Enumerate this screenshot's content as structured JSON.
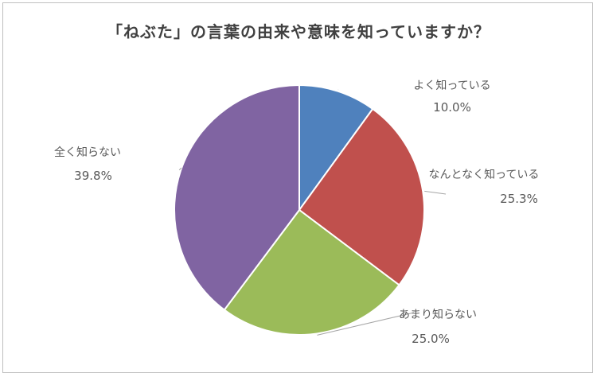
{
  "chart_data": {
    "type": "pie",
    "title": "「ねぶた」の言葉の由来や意味を知っていますか？",
    "slices": [
      {
        "label": "よく知っている",
        "value": 10.0,
        "display": "10.0%",
        "color": "#4f81bd"
      },
      {
        "label": "なんとなく知っている",
        "value": 25.3,
        "display": "25.3%",
        "color": "#c0504d"
      },
      {
        "label": "あまり知らない",
        "value": 25.0,
        "display": "25.0%",
        "color": "#9bbb59"
      },
      {
        "label": "全く知らない",
        "value": 39.8,
        "display": "39.8%",
        "color": "#8064a2"
      }
    ]
  }
}
